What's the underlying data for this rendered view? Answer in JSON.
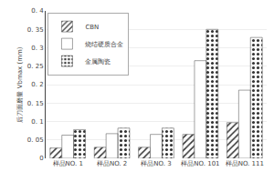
{
  "chart_data": {
    "type": "bar",
    "categories": [
      "样品NO. 1",
      "样品NO. 2",
      "样品NO. 3",
      "样品NO. 101",
      "样品NO. 111"
    ],
    "series": [
      {
        "name": "CBN",
        "color": "#aaaaaa",
        "values": [
          0.028,
          0.03,
          0.03,
          0.065,
          0.097
        ]
      },
      {
        "name": "烧结硬质合金",
        "color": "#ffffff",
        "values": [
          0.063,
          0.067,
          0.065,
          0.265,
          0.185
        ]
      },
      {
        "name": "金属陶瓷",
        "color": "#cccccc",
        "values": [
          0.078,
          0.082,
          0.082,
          0.35,
          0.328
        ]
      }
    ],
    "y_label": "后刀面磨量 Vbmax (mm)",
    "ylim": [
      0,
      0.4
    ],
    "yticks": [
      0,
      {
        "value": 0.05,
        "label": "0. 05"
      },
      {
        "value": 0.1,
        "label": "0. 1"
      },
      {
        "value": 0.15,
        "label": "0. 15"
      },
      {
        "value": 0.2,
        "label": "0. 2"
      },
      {
        "value": 0.25,
        "label": "0. 25"
      },
      {
        "value": 0.3,
        "label": "0. 3"
      },
      {
        "value": 0.35,
        "label": "0. 35"
      },
      {
        "value": 0.4,
        "label": "0. 4"
      }
    ],
    "grid": true,
    "legend": "upper left"
  }
}
